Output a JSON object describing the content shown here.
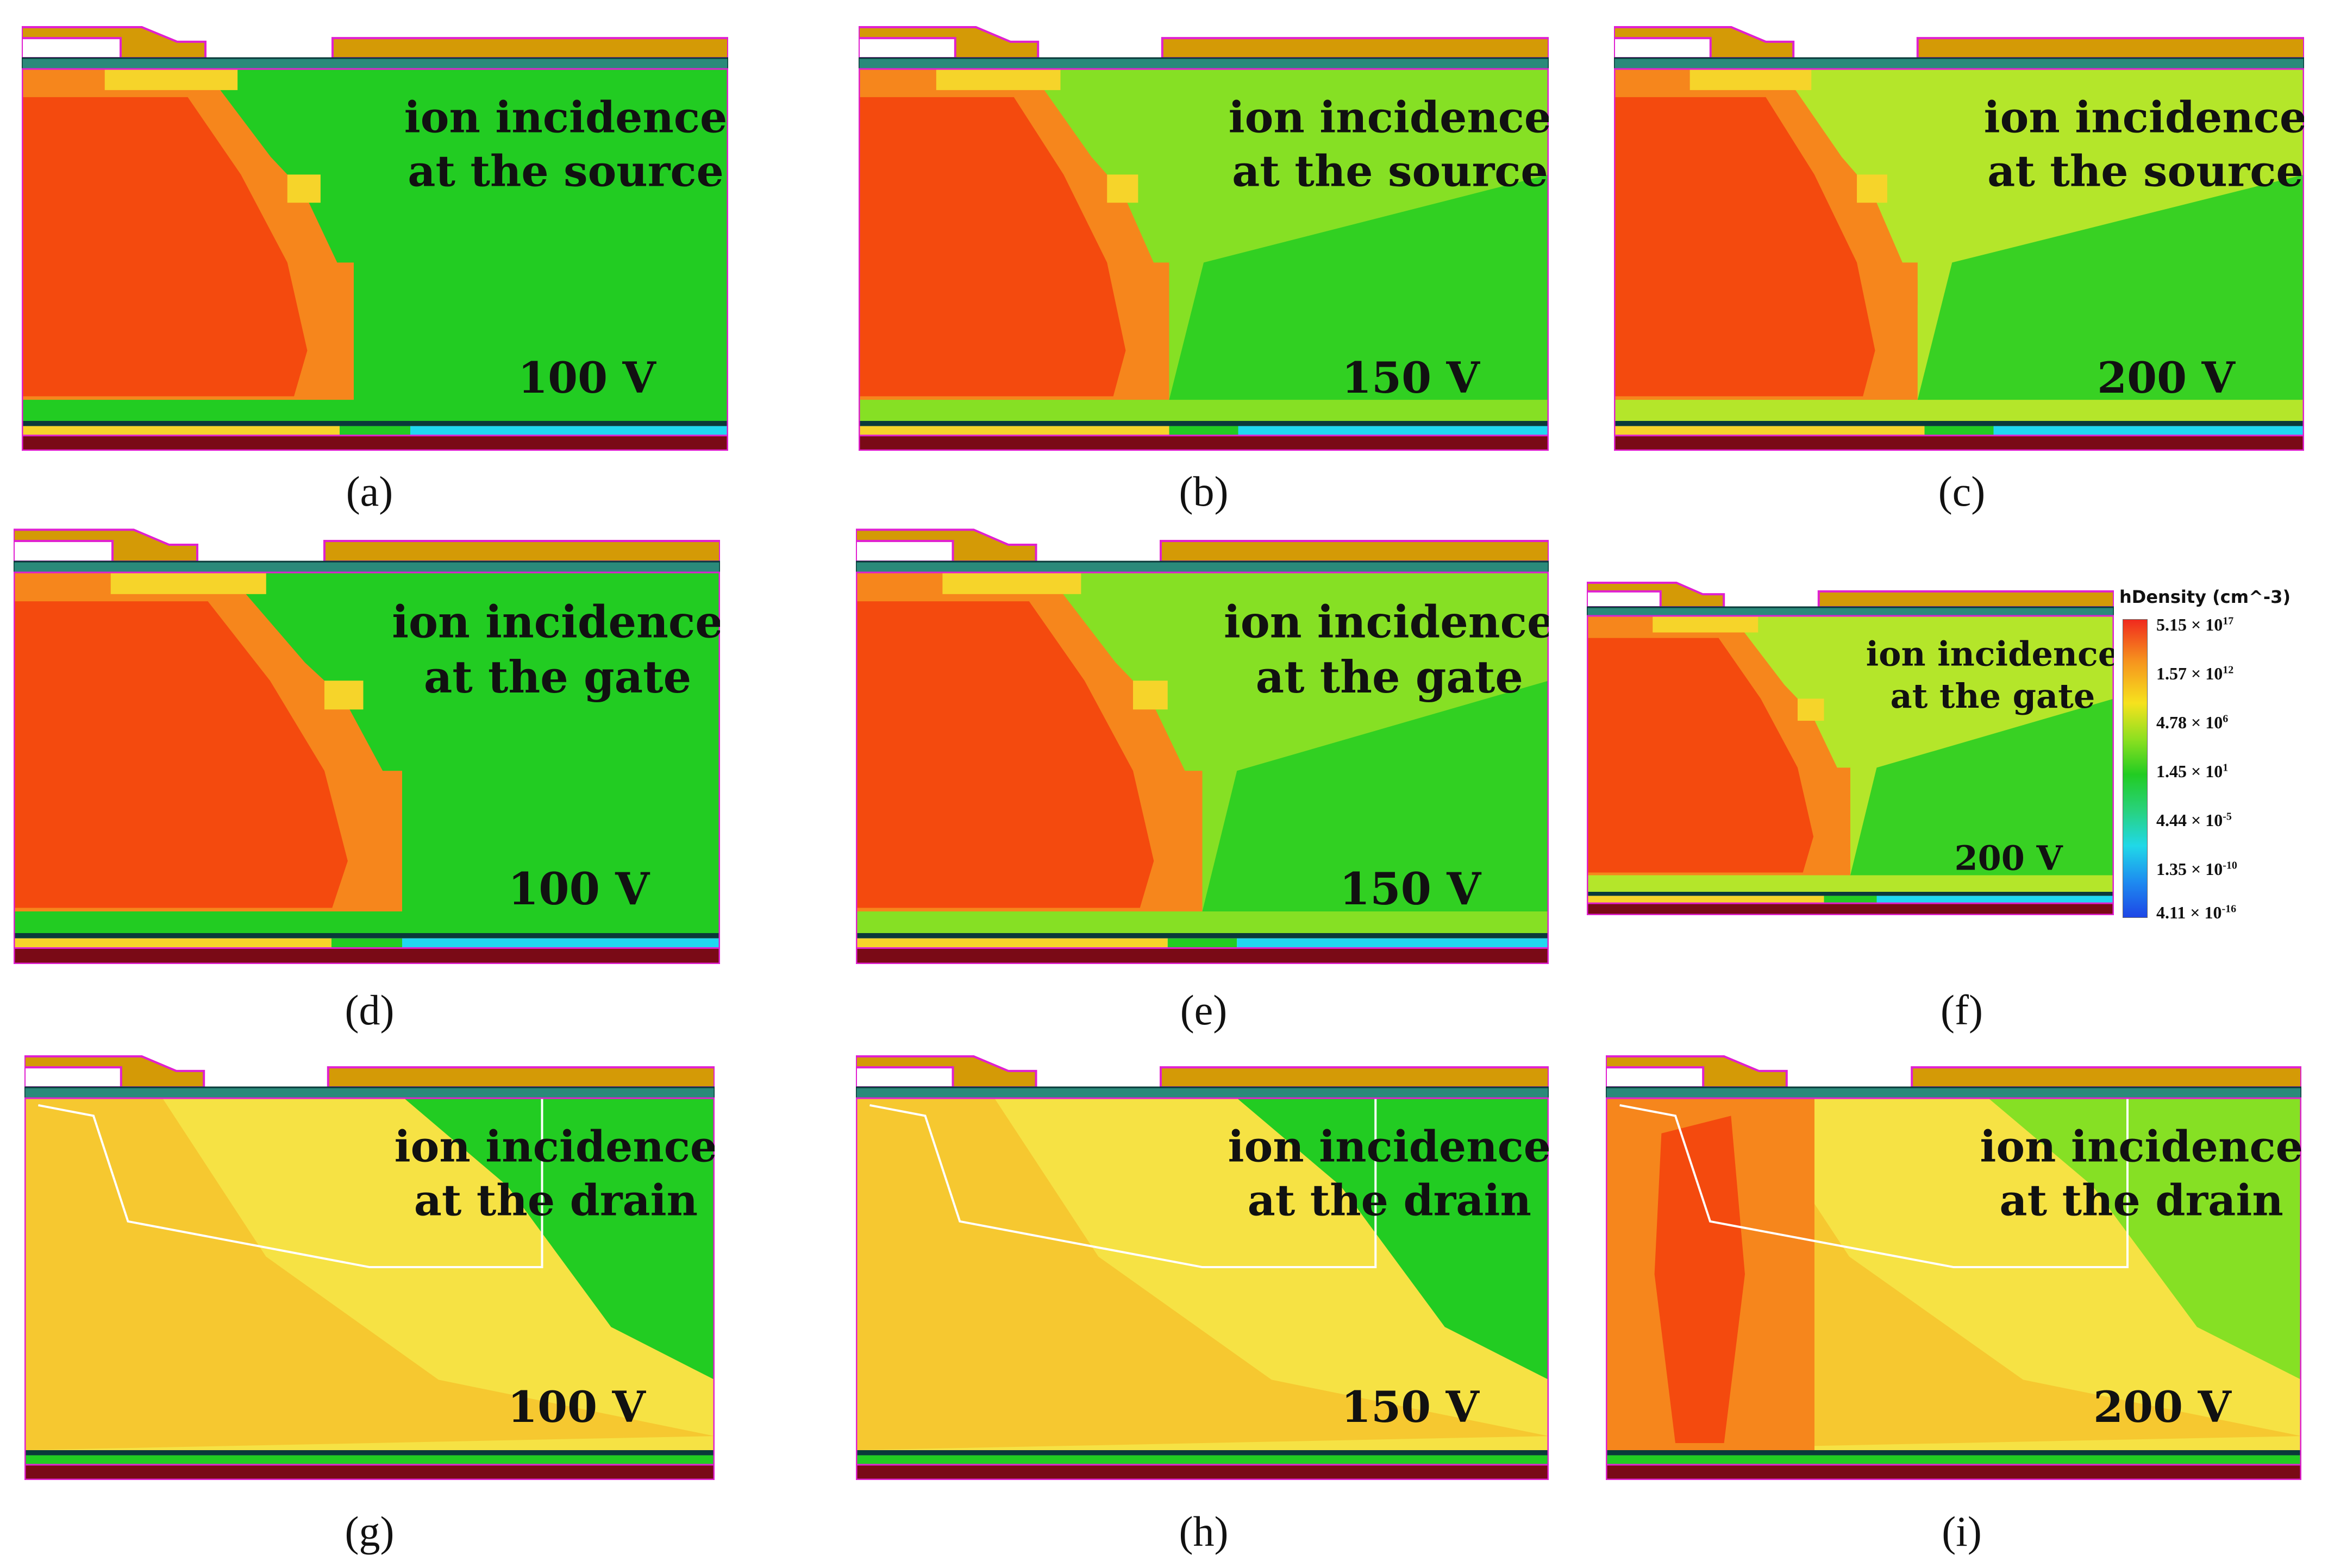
{
  "panels": [
    {
      "id": "a",
      "caption": "(a)",
      "line1": "ion incidence",
      "line2": "at the source",
      "voltage": "100 V",
      "variant": "source",
      "red_extent": 0.47,
      "green_tone": "#22cc22"
    },
    {
      "id": "b",
      "caption": "(b)",
      "line1": "ion incidence",
      "line2": "at the source",
      "voltage": "150 V",
      "variant": "source",
      "red_extent": 0.45,
      "green_tone": "#86e024"
    },
    {
      "id": "c",
      "caption": "(c)",
      "line1": "ion incidence",
      "line2": "at the source",
      "voltage": "200 V",
      "variant": "source",
      "red_extent": 0.44,
      "green_tone": "#b4e62a"
    },
    {
      "id": "d",
      "caption": "(d)",
      "line1": "ion incidence",
      "line2": "at the gate",
      "voltage": "100 V",
      "variant": "gate",
      "red_extent": 0.55,
      "green_tone": "#22cc22"
    },
    {
      "id": "e",
      "caption": "(e)",
      "line1": "ion incidence",
      "line2": "at the gate",
      "voltage": "150 V",
      "variant": "gate",
      "red_extent": 0.5,
      "green_tone": "#86e024"
    },
    {
      "id": "f",
      "caption": "(f)",
      "line1": "ion incidence",
      "line2": "at the gate",
      "voltage": "200 V",
      "variant": "gate",
      "red_extent": 0.5,
      "green_tone": "#b4e62a"
    },
    {
      "id": "g",
      "caption": "(g)",
      "line1": "ion incidence",
      "line2": "at the drain",
      "voltage": "100 V",
      "variant": "drain",
      "red_extent": 0.0,
      "green_tone": "#22cc22"
    },
    {
      "id": "h",
      "caption": "(h)",
      "line1": "ion incidence",
      "line2": "at the drain",
      "voltage": "150 V",
      "variant": "drain",
      "red_extent": 0.0,
      "green_tone": "#22cc22"
    },
    {
      "id": "i",
      "caption": "(i)",
      "line1": "ion incidence",
      "line2": "at the drain",
      "voltage": "200 V",
      "variant": "drain-hot",
      "red_extent": 0.3,
      "green_tone": "#86e024"
    }
  ],
  "legend": {
    "title": "hDensity (cm^-3)",
    "ticks": [
      {
        "mantissa": "5.15 × 10",
        "exp": "17"
      },
      {
        "mantissa": "1.57 × 10",
        "exp": "12"
      },
      {
        "mantissa": "4.78 × 10",
        "exp": "6"
      },
      {
        "mantissa": "1.45 × 10",
        "exp": "1"
      },
      {
        "mantissa": "4.44 × 10",
        "exp": "-5"
      },
      {
        "mantissa": "1.35 × 10",
        "exp": "-10"
      },
      {
        "mantissa": "4.11 × 10",
        "exp": "-16"
      }
    ]
  },
  "colors": {
    "metal": "#d49a06",
    "outline": "#e020d0",
    "red_core": "#f44a0e",
    "orange": "#f6861c",
    "yellow": "#f6d42a",
    "substrate": "#7a0a16",
    "cyan": "#20d8f0"
  }
}
